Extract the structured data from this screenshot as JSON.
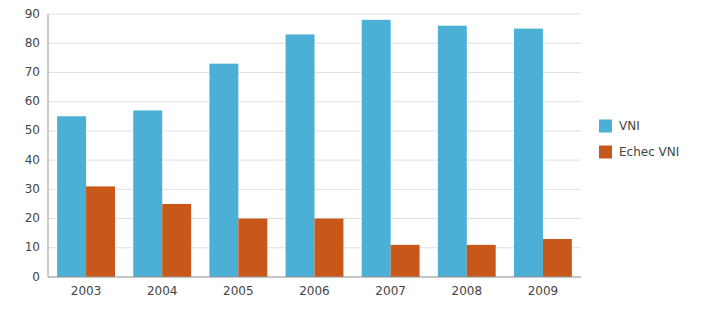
{
  "chart_data": {
    "type": "bar",
    "categories": [
      "2003",
      "2004",
      "2005",
      "2006",
      "2007",
      "2008",
      "2009"
    ],
    "series": [
      {
        "name": "VNI",
        "color": "#4bafd6",
        "values": [
          55,
          57,
          73,
          83,
          88,
          86,
          85
        ]
      },
      {
        "name": "Echec VNI",
        "color": "#c8581a",
        "values": [
          31,
          25,
          20,
          20,
          11,
          11,
          13
        ]
      }
    ],
    "ylim": [
      0,
      90
    ],
    "yticks": [
      0,
      10,
      20,
      30,
      40,
      50,
      60,
      70,
      80,
      90
    ],
    "grid": true,
    "legend": "right"
  }
}
